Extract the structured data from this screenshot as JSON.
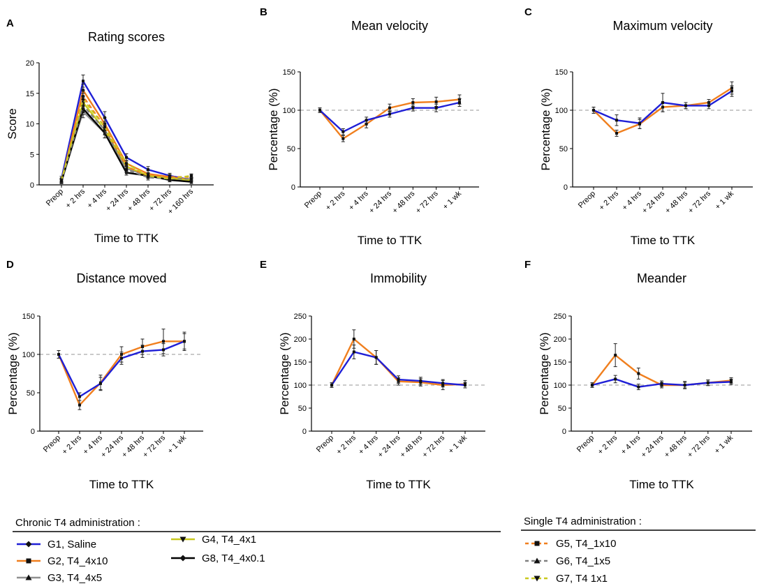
{
  "chart_data": [
    {
      "panel": "A",
      "type": "line",
      "title": "Rating scores",
      "xlabel": "Time to TTK",
      "ylabel": "Score",
      "categories": [
        "Preop",
        "+ 2 hrs",
        "+ 4 hrs",
        "+ 24 hrs",
        "+ 48 hrs",
        "+ 72 hrs",
        "+ 160 hrs"
      ],
      "ylim": [
        0,
        20
      ],
      "yticks": [
        0,
        5,
        10,
        15,
        20
      ],
      "series": [
        {
          "name": "G1, Saline",
          "color": "#1f1fd6",
          "values": [
            1.0,
            17.0,
            11.0,
            4.5,
            2.5,
            1.5,
            0.8
          ],
          "errors": [
            0.4,
            1.0,
            1.0,
            0.6,
            0.5,
            0.4,
            0.3
          ]
        },
        {
          "name": "G2, T4_4x10",
          "color": "#f07f1e",
          "values": [
            0.5,
            15.5,
            10.0,
            3.5,
            1.8,
            1.3,
            0.8
          ],
          "errors": [
            0.3,
            1.0,
            1.0,
            0.5,
            0.5,
            0.4,
            0.3
          ]
        },
        {
          "name": "G3, T4_4x5",
          "color": "#909090",
          "values": [
            0.6,
            12.0,
            8.5,
            2.7,
            1.5,
            1.0,
            0.8
          ],
          "errors": [
            0.3,
            1.0,
            0.8,
            0.5,
            0.4,
            0.3,
            0.3
          ]
        },
        {
          "name": "G4, T4_4x1",
          "color": "#c8c81e",
          "values": [
            0.8,
            13.5,
            9.0,
            3.0,
            1.5,
            1.0,
            0.8
          ],
          "errors": [
            0.3,
            1.0,
            0.8,
            0.5,
            0.4,
            0.3,
            0.3
          ]
        },
        {
          "name": "G8, T4_4x0.1",
          "color": "#000000",
          "values": [
            0.5,
            12.5,
            8.5,
            2.0,
            1.5,
            0.8,
            0.5
          ],
          "errors": [
            0.3,
            1.0,
            0.8,
            0.4,
            0.4,
            0.3,
            0.3
          ]
        },
        {
          "name": "G5, T4_1x10",
          "color": "#f07f1e",
          "dashed": true,
          "values": [
            0.6,
            14.5,
            9.5,
            3.0,
            1.5,
            1.3,
            1.3
          ],
          "errors": [
            0.3,
            1.0,
            0.9,
            0.5,
            0.4,
            0.3,
            0.3
          ]
        },
        {
          "name": "G6, T4_1x5",
          "color": "#808080",
          "dashed": true,
          "values": [
            0.6,
            13.0,
            9.0,
            2.5,
            1.2,
            1.0,
            1.0
          ],
          "errors": [
            0.3,
            1.0,
            0.8,
            0.5,
            0.4,
            0.3,
            0.3
          ]
        },
        {
          "name": "G7, T4 1x1",
          "color": "#c8c81e",
          "dashed": true,
          "values": [
            0.7,
            14.0,
            9.5,
            3.5,
            1.5,
            1.0,
            1.5
          ],
          "errors": [
            0.3,
            1.0,
            0.9,
            0.5,
            0.4,
            0.3,
            0.3
          ]
        }
      ]
    },
    {
      "panel": "B",
      "type": "line",
      "title": "Mean velocity",
      "xlabel": "Time to TTK",
      "ylabel": "Percentage  (%)",
      "categories": [
        "Preop",
        "+ 2 hrs",
        "+ 4 hrs",
        "+ 24 hrs",
        "+ 48 hrs",
        "+ 72 hrs",
        "+ 1 wk"
      ],
      "ylim": [
        0,
        150
      ],
      "yticks": [
        0,
        50,
        100,
        150
      ],
      "reference_line": 100,
      "series": [
        {
          "name": "G2, T4_4x10",
          "color": "#f07f1e",
          "values": [
            100,
            63,
            82,
            103,
            110,
            111,
            114
          ],
          "errors": [
            3,
            4,
            5,
            5,
            5,
            6,
            6
          ]
        },
        {
          "name": "G1, Saline",
          "color": "#1f1fd6",
          "values": [
            100,
            72,
            87,
            95,
            103,
            103,
            110
          ],
          "errors": [
            3,
            4,
            4,
            4,
            4,
            5,
            5
          ]
        }
      ]
    },
    {
      "panel": "C",
      "type": "line",
      "title": "Maximum velocity",
      "xlabel": "Time to TTK",
      "ylabel": "Percentage  (%)",
      "categories": [
        "Preop",
        "+ 2 hrs",
        "+ 4 hrs",
        "+ 24 hrs",
        "+ 48 hrs",
        "+ 72 hrs",
        "+ 1 wk"
      ],
      "ylim": [
        0,
        150
      ],
      "yticks": [
        0,
        50,
        100,
        150
      ],
      "reference_line": 100,
      "series": [
        {
          "name": "G2, T4_4x10",
          "color": "#f07f1e",
          "values": [
            100,
            70,
            82,
            104,
            106,
            110,
            129
          ],
          "errors": [
            4,
            4,
            6,
            6,
            4,
            4,
            8
          ]
        },
        {
          "name": "G1, Saline",
          "color": "#1f1fd6",
          "values": [
            100,
            87,
            83,
            110,
            106,
            106,
            125
          ],
          "errors": [
            4,
            7,
            7,
            12,
            4,
            4,
            7
          ]
        }
      ]
    },
    {
      "panel": "D",
      "type": "line",
      "title": "Distance moved",
      "xlabel": "Time to TTK",
      "ylabel": "Percentage  (%)",
      "categories": [
        "Preop",
        "+ 2 hrs",
        "+ 4 hrs",
        "+ 24 hrs",
        "+ 48 hrs",
        "+ 72 hrs",
        "+ 1 wk"
      ],
      "ylim": [
        0,
        150
      ],
      "yticks": [
        0,
        50,
        100,
        150
      ],
      "reference_line": 100,
      "series": [
        {
          "name": "G2, T4_4x10",
          "color": "#f07f1e",
          "values": [
            100,
            34,
            63,
            100,
            110,
            117,
            117
          ],
          "errors": [
            5,
            6,
            10,
            10,
            10,
            16,
            12
          ]
        },
        {
          "name": "G1, Saline",
          "color": "#1f1fd6",
          "values": [
            100,
            45,
            62,
            95,
            104,
            106,
            117
          ],
          "errors": [
            5,
            5,
            8,
            8,
            8,
            8,
            10
          ]
        }
      ]
    },
    {
      "panel": "E",
      "type": "line",
      "title": "Immobility",
      "xlabel": "Time to TTK",
      "ylabel": "Percentage  (%)",
      "categories": [
        "Preop",
        "+ 2 hrs",
        "+ 4 hrs",
        "+ 24 hrs",
        "+ 48 hrs",
        "+ 72 hrs",
        "+ 1 wk"
      ],
      "ylim": [
        0,
        250
      ],
      "yticks": [
        0,
        50,
        100,
        150,
        200,
        250
      ],
      "reference_line": 100,
      "series": [
        {
          "name": "G2, T4_4x10",
          "color": "#f07f1e",
          "values": [
            100,
            200,
            160,
            108,
            106,
            100,
            102
          ],
          "errors": [
            5,
            20,
            15,
            8,
            8,
            10,
            8
          ]
        },
        {
          "name": "G1, Saline",
          "color": "#1f1fd6",
          "values": [
            100,
            172,
            160,
            112,
            109,
            104,
            100
          ],
          "errors": [
            5,
            15,
            15,
            8,
            8,
            8,
            6
          ]
        }
      ]
    },
    {
      "panel": "F",
      "type": "line",
      "title": "Meander",
      "xlabel": "Time to TTK",
      "ylabel": "Percentage  (%)",
      "categories": [
        "Preop",
        "+ 2 hrs",
        "+ 4 hrs",
        "+ 24 hrs",
        "+ 48 hrs",
        "+ 72 hrs",
        "+ 1 wk"
      ],
      "ylim": [
        0,
        250
      ],
      "yticks": [
        0,
        50,
        100,
        150,
        200,
        250
      ],
      "reference_line": 100,
      "series": [
        {
          "name": "G2, T4_4x10",
          "color": "#f07f1e",
          "values": [
            100,
            165,
            125,
            100,
            100,
            105,
            110
          ],
          "errors": [
            5,
            25,
            12,
            6,
            8,
            6,
            6
          ]
        },
        {
          "name": "G1, Saline",
          "color": "#1f1fd6",
          "values": [
            100,
            113,
            96,
            103,
            100,
            105,
            107
          ],
          "errors": [
            5,
            8,
            6,
            6,
            6,
            6,
            6
          ]
        }
      ]
    }
  ],
  "legend": {
    "chronic": {
      "heading": "Chronic T4 administration :",
      "items": [
        {
          "label": "G1, Saline",
          "color": "#1f1fd6",
          "marker": "diamond",
          "dashed": false
        },
        {
          "label": "G2, T4_4x10",
          "color": "#f07f1e",
          "marker": "square",
          "dashed": false
        },
        {
          "label": "G3, T4_4x5",
          "color": "#909090",
          "marker": "triangle-up",
          "dashed": false
        },
        {
          "label": "G4, T4_4x1",
          "color": "#c8c81e",
          "marker": "triangle-down",
          "dashed": false
        },
        {
          "label": "G8, T4_4x0.1",
          "color": "#000000",
          "marker": "diamond",
          "dashed": false
        }
      ]
    },
    "single": {
      "heading": "Single T4 administration :",
      "items": [
        {
          "label": "G5, T4_1x10",
          "color": "#f07f1e",
          "marker": "square",
          "dashed": true
        },
        {
          "label": "G6, T4_1x5",
          "color": "#808080",
          "marker": "triangle-up",
          "dashed": true
        },
        {
          "label": "G7, T4 1x1",
          "color": "#c8c81e",
          "marker": "triangle-down",
          "dashed": true
        }
      ]
    }
  }
}
